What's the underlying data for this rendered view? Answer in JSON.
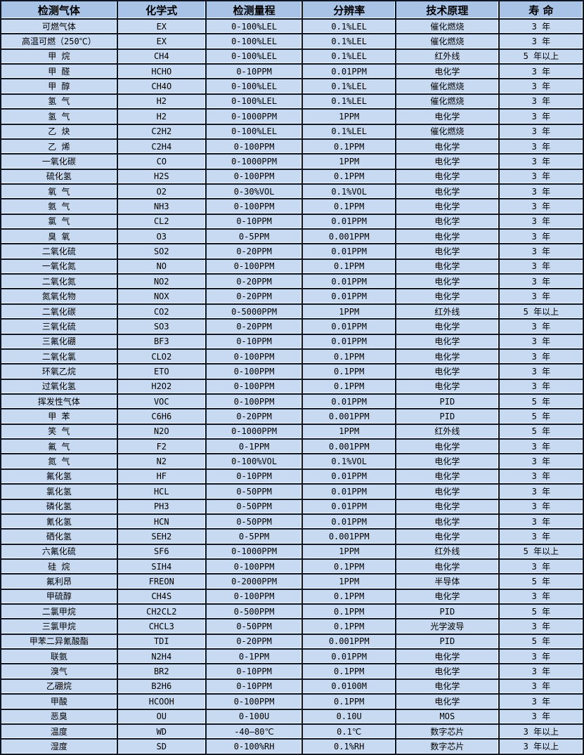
{
  "colors": {
    "header_bg": "#a9c3e6",
    "row_bg": "#c8daf2",
    "border": "#0e1626",
    "highlight": "#f4f8ff",
    "text": "#000000"
  },
  "table": {
    "headers": [
      "检测气体",
      "化学式",
      "检测量程",
      "分辨率",
      "技术原理",
      "寿 命"
    ],
    "column_keys": [
      "gas",
      "formula",
      "range",
      "resolution",
      "principle",
      "lifespan"
    ],
    "rows": [
      [
        "可燃气体",
        "EX",
        "0-100%LEL",
        "0.1%LEL",
        "催化燃烧",
        "3 年"
      ],
      [
        "高温可燃（250℃）",
        "EX",
        "0-100%LEL",
        "0.1%LEL",
        "催化燃烧",
        "3 年"
      ],
      [
        "甲 烷",
        "CH4",
        "0-100%LEL",
        "0.1%LEL",
        "红外线",
        "5 年以上"
      ],
      [
        "甲 醛",
        "HCHO",
        "0-10PPM",
        "0.01PPM",
        "电化学",
        "3 年"
      ],
      [
        "甲 醇",
        "CH4O",
        "0-100%LEL",
        "0.1%LEL",
        "催化燃烧",
        "3 年"
      ],
      [
        "氢 气",
        "H2",
        "0-100%LEL",
        "0.1%LEL",
        "催化燃烧",
        "3 年"
      ],
      [
        "氢 气",
        "H2",
        "0-1000PPM",
        "1PPM",
        "电化学",
        "3 年"
      ],
      [
        "乙 炔",
        "C2H2",
        "0-100%LEL",
        "0.1%LEL",
        "催化燃烧",
        "3 年"
      ],
      [
        "乙 烯",
        "C2H4",
        "0-100PPM",
        "0.1PPM",
        "电化学",
        "3 年"
      ],
      [
        "一氧化碳",
        "CO",
        "0-1000PPM",
        "1PPM",
        "电化学",
        "3 年"
      ],
      [
        "硫化氢",
        "H2S",
        "0-100PPM",
        "0.1PPM",
        "电化学",
        "3 年"
      ],
      [
        "氧 气",
        "O2",
        "0-30%VOL",
        "0.1%VOL",
        "电化学",
        "3 年"
      ],
      [
        "氨 气",
        "NH3",
        "0-100PPM",
        "0.1PPM",
        "电化学",
        "3 年"
      ],
      [
        "氯 气",
        "CL2",
        "0-10PPM",
        "0.01PPM",
        "电化学",
        "3 年"
      ],
      [
        "臭 氧",
        "O3",
        "0-5PPM",
        "0.001PPM",
        "电化学",
        "3 年"
      ],
      [
        "二氧化硫",
        "SO2",
        "0-20PPM",
        "0.01PPM",
        "电化学",
        "3 年"
      ],
      [
        "一氧化氮",
        "NO",
        "0-100PPM",
        "0.1PPM",
        "电化学",
        "3 年"
      ],
      [
        "二氧化氮",
        "NO2",
        "0-20PPM",
        "0.01PPM",
        "电化学",
        "3 年"
      ],
      [
        "氮氧化物",
        "NOX",
        "0-20PPM",
        "0.01PPM",
        "电化学",
        "3 年"
      ],
      [
        "二氧化碳",
        "CO2",
        "0-5000PPM",
        "1PPM",
        "红外线",
        "5 年以上"
      ],
      [
        "三氧化硫",
        "SO3",
        "0-20PPM",
        "0.01PPM",
        "电化学",
        "3 年"
      ],
      [
        "三氟化硼",
        "BF3",
        "0-10PPM",
        "0.01PPM",
        "电化学",
        "3 年"
      ],
      [
        "二氧化氯",
        "CLO2",
        "0-100PPM",
        "0.1PPM",
        "电化学",
        "3 年"
      ],
      [
        "环氧乙烷",
        "ETO",
        "0-100PPM",
        "0.1PPM",
        "电化学",
        "3 年"
      ],
      [
        "过氧化氢",
        "H2O2",
        "0-100PPM",
        "0.1PPM",
        "电化学",
        "3 年"
      ],
      [
        "挥发性气体",
        "VOC",
        "0-100PPM",
        "0.01PPM",
        "PID",
        "5 年"
      ],
      [
        "甲 苯",
        "C6H6",
        "0-20PPM",
        "0.001PPM",
        "PID",
        "5 年"
      ],
      [
        "笑 气",
        "N2O",
        "0-1000PPM",
        "1PPM",
        "红外线",
        "5 年"
      ],
      [
        "氟 气",
        "F2",
        "0-1PPM",
        "0.001PPM",
        "电化学",
        "3 年"
      ],
      [
        "氮 气",
        "N2",
        "0-100%VOL",
        "0.1%VOL",
        "电化学",
        "3 年"
      ],
      [
        "氟化氢",
        "HF",
        "0-10PPM",
        "0.01PPM",
        "电化学",
        "3 年"
      ],
      [
        "氯化氢",
        "HCL",
        "0-50PPM",
        "0.01PPM",
        "电化学",
        "3 年"
      ],
      [
        "磷化氢",
        "PH3",
        "0-50PPM",
        "0.01PPM",
        "电化学",
        "3 年"
      ],
      [
        "氰化氢",
        "HCN",
        "0-50PPM",
        "0.01PPM",
        "电化学",
        "3 年"
      ],
      [
        "硒化氢",
        "SEH2",
        "0-5PPM",
        "0.001PPM",
        "电化学",
        "3 年"
      ],
      [
        "六氟化硫",
        "SF6",
        "0-1000PPM",
        "1PPM",
        "红外线",
        "5 年以上"
      ],
      [
        "硅 烷",
        "SIH4",
        "0-100PPM",
        "0.1PPM",
        "电化学",
        "3 年"
      ],
      [
        "氟利昂",
        "FREON",
        "0-2000PPM",
        "1PPM",
        "半导体",
        "5 年"
      ],
      [
        "甲硫醇",
        "CH4S",
        "0-100PPM",
        "0.1PPM",
        "电化学",
        "3 年"
      ],
      [
        "二氯甲烷",
        "CH2CL2",
        "0-500PPM",
        "0.1PPM",
        "PID",
        "5 年"
      ],
      [
        "三氯甲烷",
        "CHCL3",
        "0-50PPM",
        "0.1PPM",
        "光学波导",
        "3 年"
      ],
      [
        "甲苯二异氰酸酯",
        "TDI",
        "0-20PPM",
        "0.001PPM",
        "PID",
        "5 年"
      ],
      [
        "联氨",
        "N2H4",
        "0-1PPM",
        "0.01PPM",
        "电化学",
        "3 年"
      ],
      [
        "溴气",
        "BR2",
        "0-10PPM",
        "0.1PPM",
        "电化学",
        "3 年"
      ],
      [
        "乙硼烷",
        "B2H6",
        "0-10PPM",
        "0.0100M",
        "电化学",
        "3 年"
      ],
      [
        "甲酸",
        "HCOOH",
        "0-100PPM",
        "0.1PPM",
        "电化学",
        "3 年"
      ],
      [
        "恶臭",
        "OU",
        "0-100U",
        "0.10U",
        "MOS",
        "3 年"
      ],
      [
        "温度",
        "WD",
        "-40—80℃",
        "0.1℃",
        "数字芯片",
        "3 年以上"
      ],
      [
        "湿度",
        "SD",
        "0-100%RH",
        "0.1%RH",
        "数字芯片",
        "3 年以上"
      ]
    ]
  }
}
